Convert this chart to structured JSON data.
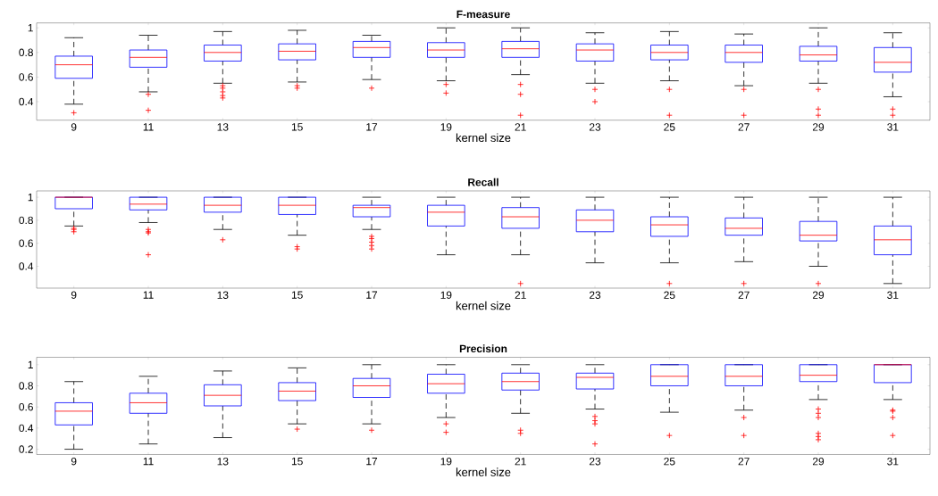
{
  "chart_data": [
    {
      "type": "box",
      "title": "F-measure",
      "xlabel": "kernel size",
      "categories": [
        "9",
        "11",
        "13",
        "15",
        "17",
        "19",
        "21",
        "23",
        "25",
        "27",
        "29",
        "31"
      ],
      "ylim": [
        0.25,
        1.04
      ],
      "yticks": [
        0.4,
        0.6,
        0.8,
        1
      ],
      "boxes": [
        {
          "low": 0.38,
          "q1": 0.59,
          "median": 0.7,
          "q3": 0.77,
          "high": 0.92,
          "outliers": [
            0.31
          ]
        },
        {
          "low": 0.48,
          "q1": 0.68,
          "median": 0.76,
          "q3": 0.82,
          "high": 0.94,
          "outliers": [
            0.46,
            0.33
          ]
        },
        {
          "low": 0.55,
          "q1": 0.73,
          "median": 0.8,
          "q3": 0.86,
          "high": 0.97,
          "outliers": [
            0.53,
            0.51,
            0.48,
            0.45,
            0.43
          ]
        },
        {
          "low": 0.56,
          "q1": 0.74,
          "median": 0.81,
          "q3": 0.87,
          "high": 0.98,
          "outliers": [
            0.53,
            0.51
          ]
        },
        {
          "low": 0.58,
          "q1": 0.76,
          "median": 0.84,
          "q3": 0.89,
          "high": 0.94,
          "outliers": [
            0.51
          ]
        },
        {
          "low": 0.57,
          "q1": 0.76,
          "median": 0.82,
          "q3": 0.88,
          "high": 1.0,
          "outliers": [
            0.54,
            0.47
          ]
        },
        {
          "low": 0.62,
          "q1": 0.76,
          "median": 0.83,
          "q3": 0.89,
          "high": 1.0,
          "outliers": [
            0.54,
            0.46,
            0.29
          ]
        },
        {
          "low": 0.55,
          "q1": 0.73,
          "median": 0.82,
          "q3": 0.87,
          "high": 0.96,
          "outliers": [
            0.5,
            0.4
          ]
        },
        {
          "low": 0.57,
          "q1": 0.74,
          "median": 0.8,
          "q3": 0.86,
          "high": 0.97,
          "outliers": [
            0.5,
            0.29
          ]
        },
        {
          "low": 0.53,
          "q1": 0.72,
          "median": 0.8,
          "q3": 0.86,
          "high": 0.95,
          "outliers": [
            0.5,
            0.29
          ]
        },
        {
          "low": 0.55,
          "q1": 0.73,
          "median": 0.78,
          "q3": 0.85,
          "high": 1.0,
          "outliers": [
            0.5,
            0.34,
            0.29
          ]
        },
        {
          "low": 0.44,
          "q1": 0.64,
          "median": 0.72,
          "q3": 0.84,
          "high": 0.96,
          "outliers": [
            0.34,
            0.29
          ]
        }
      ]
    },
    {
      "type": "box",
      "title": "Recall",
      "xlabel": "kernel size",
      "categories": [
        "9",
        "11",
        "13",
        "15",
        "17",
        "19",
        "21",
        "23",
        "25",
        "27",
        "29",
        "31"
      ],
      "ylim": [
        0.21,
        1.055
      ],
      "yticks": [
        0.4,
        0.6,
        0.8,
        1
      ],
      "boxes": [
        {
          "low": 0.75,
          "q1": 0.9,
          "median": 1.0,
          "q3": 1.0,
          "high": 1.0,
          "outliers": [
            0.73,
            0.72,
            0.7
          ]
        },
        {
          "low": 0.78,
          "q1": 0.89,
          "median": 0.94,
          "q3": 1.0,
          "high": 1.0,
          "outliers": [
            0.72,
            0.7,
            0.69,
            0.5
          ]
        },
        {
          "low": 0.72,
          "q1": 0.87,
          "median": 0.93,
          "q3": 1.0,
          "high": 1.0,
          "outliers": [
            0.63
          ]
        },
        {
          "low": 0.67,
          "q1": 0.85,
          "median": 0.93,
          "q3": 1.0,
          "high": 1.0,
          "outliers": [
            0.57,
            0.55
          ]
        },
        {
          "low": 0.72,
          "q1": 0.83,
          "median": 0.91,
          "q3": 0.93,
          "high": 1.0,
          "outliers": [
            0.66,
            0.64,
            0.61,
            0.58,
            0.55
          ]
        },
        {
          "low": 0.5,
          "q1": 0.75,
          "median": 0.87,
          "q3": 0.93,
          "high": 1.0
        },
        {
          "low": 0.5,
          "q1": 0.73,
          "median": 0.83,
          "q3": 0.91,
          "high": 1.0,
          "outliers": [
            0.25
          ]
        },
        {
          "low": 0.43,
          "q1": 0.7,
          "median": 0.8,
          "q3": 0.89,
          "high": 1.0
        },
        {
          "low": 0.43,
          "q1": 0.66,
          "median": 0.76,
          "q3": 0.83,
          "high": 1.0,
          "outliers": [
            0.25
          ]
        },
        {
          "low": 0.44,
          "q1": 0.67,
          "median": 0.73,
          "q3": 0.82,
          "high": 1.0,
          "outliers": [
            0.25
          ]
        },
        {
          "low": 0.4,
          "q1": 0.62,
          "median": 0.67,
          "q3": 0.79,
          "high": 1.0,
          "outliers": [
            0.25
          ]
        },
        {
          "low": 0.25,
          "q1": 0.5,
          "median": 0.63,
          "q3": 0.75,
          "high": 1.0
        }
      ]
    },
    {
      "type": "box",
      "title": "Precision",
      "xlabel": "kernel size",
      "categories": [
        "9",
        "11",
        "13",
        "15",
        "17",
        "19",
        "21",
        "23",
        "25",
        "27",
        "29",
        "31"
      ],
      "ylim": [
        0.15,
        1.07
      ],
      "yticks": [
        0.2,
        0.4,
        0.6,
        0.8,
        1
      ],
      "boxes": [
        {
          "low": 0.2,
          "q1": 0.43,
          "median": 0.56,
          "q3": 0.64,
          "high": 0.84
        },
        {
          "low": 0.25,
          "q1": 0.54,
          "median": 0.64,
          "q3": 0.73,
          "high": 0.89
        },
        {
          "low": 0.31,
          "q1": 0.61,
          "median": 0.71,
          "q3": 0.81,
          "high": 0.94
        },
        {
          "low": 0.44,
          "q1": 0.66,
          "median": 0.75,
          "q3": 0.83,
          "high": 0.97,
          "outliers": [
            0.39
          ]
        },
        {
          "low": 0.44,
          "q1": 0.69,
          "median": 0.8,
          "q3": 0.87,
          "high": 1.0,
          "outliers": [
            0.38
          ]
        },
        {
          "low": 0.5,
          "q1": 0.73,
          "median": 0.82,
          "q3": 0.91,
          "high": 1.0,
          "outliers": [
            0.44,
            0.36
          ]
        },
        {
          "low": 0.54,
          "q1": 0.76,
          "median": 0.84,
          "q3": 0.92,
          "high": 1.0,
          "outliers": [
            0.38,
            0.35
          ]
        },
        {
          "low": 0.58,
          "q1": 0.77,
          "median": 0.88,
          "q3": 0.92,
          "high": 1.0,
          "outliers": [
            0.51,
            0.47,
            0.44,
            0.25
          ]
        },
        {
          "low": 0.55,
          "q1": 0.8,
          "median": 0.89,
          "q3": 1.0,
          "high": 1.0,
          "outliers": [
            0.33
          ]
        },
        {
          "low": 0.57,
          "q1": 0.8,
          "median": 0.89,
          "q3": 1.0,
          "high": 1.0,
          "outliers": [
            0.5,
            0.33
          ]
        },
        {
          "low": 0.67,
          "q1": 0.84,
          "median": 0.9,
          "q3": 1.0,
          "high": 1.0,
          "outliers": [
            0.58,
            0.54,
            0.5,
            0.35,
            0.32,
            0.29
          ]
        },
        {
          "low": 0.67,
          "q1": 0.83,
          "median": 1.0,
          "q3": 1.0,
          "high": 1.0,
          "outliers": [
            0.57,
            0.56,
            0.5,
            0.33
          ]
        }
      ]
    }
  ]
}
